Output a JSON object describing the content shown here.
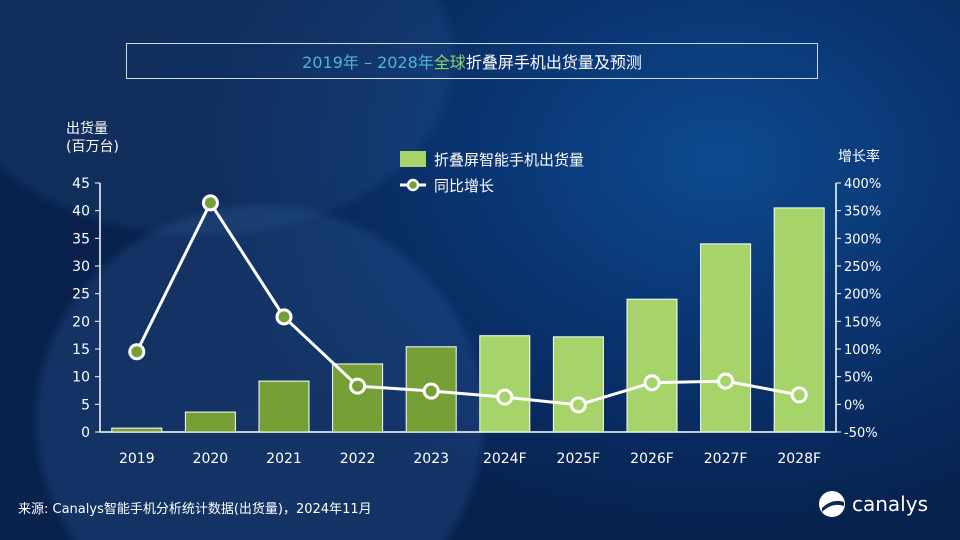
{
  "title": {
    "part1": "2019年 – 2028年 ",
    "part2": "全球",
    "part3": "折叠屏手机出货量及预测"
  },
  "chart_data": {
    "type": "bar+line",
    "title": "2019年 – 2028年 全球折叠屏手机出货量及预测",
    "categories": [
      "2019",
      "2020",
      "2021",
      "2022",
      "2023",
      "2024F",
      "2025F",
      "2026F",
      "2027F",
      "2028F"
    ],
    "forecast_from": "2024F",
    "series": [
      {
        "name": "折叠屏智能手机出货量",
        "type": "bar",
        "axis": "left",
        "values": [
          0.7,
          3.6,
          9.2,
          12.3,
          15.4,
          17.4,
          17.2,
          24.0,
          34.0,
          40.5
        ]
      },
      {
        "name": "同比增长",
        "type": "line",
        "axis": "right",
        "values": [
          95,
          364,
          158,
          33,
          24,
          13,
          -1,
          39,
          42,
          17
        ]
      }
    ],
    "ylabel_left": [
      "出货量",
      "(百万台)"
    ],
    "ylabel_right": "增长率",
    "ylim_left": [
      0,
      45
    ],
    "yticks_left": [
      "0",
      "5",
      "10",
      "15",
      "20",
      "25",
      "30",
      "35",
      "40",
      "45"
    ],
    "ylim_right": [
      -50,
      400
    ],
    "yticks_right": [
      "-50%",
      "0%",
      "50%",
      "100%",
      "150%",
      "200%",
      "250%",
      "300%",
      "350%",
      "400%"
    ],
    "legend_position": "top-center",
    "grid": false,
    "colors": {
      "bar_actual": "#76a035",
      "bar_forecast": "#a6d46a",
      "line": "#ffffff"
    }
  },
  "source": "来源: Canalys智能手机分析统计数据(出货量)，2024年11月",
  "logo": "canalys"
}
